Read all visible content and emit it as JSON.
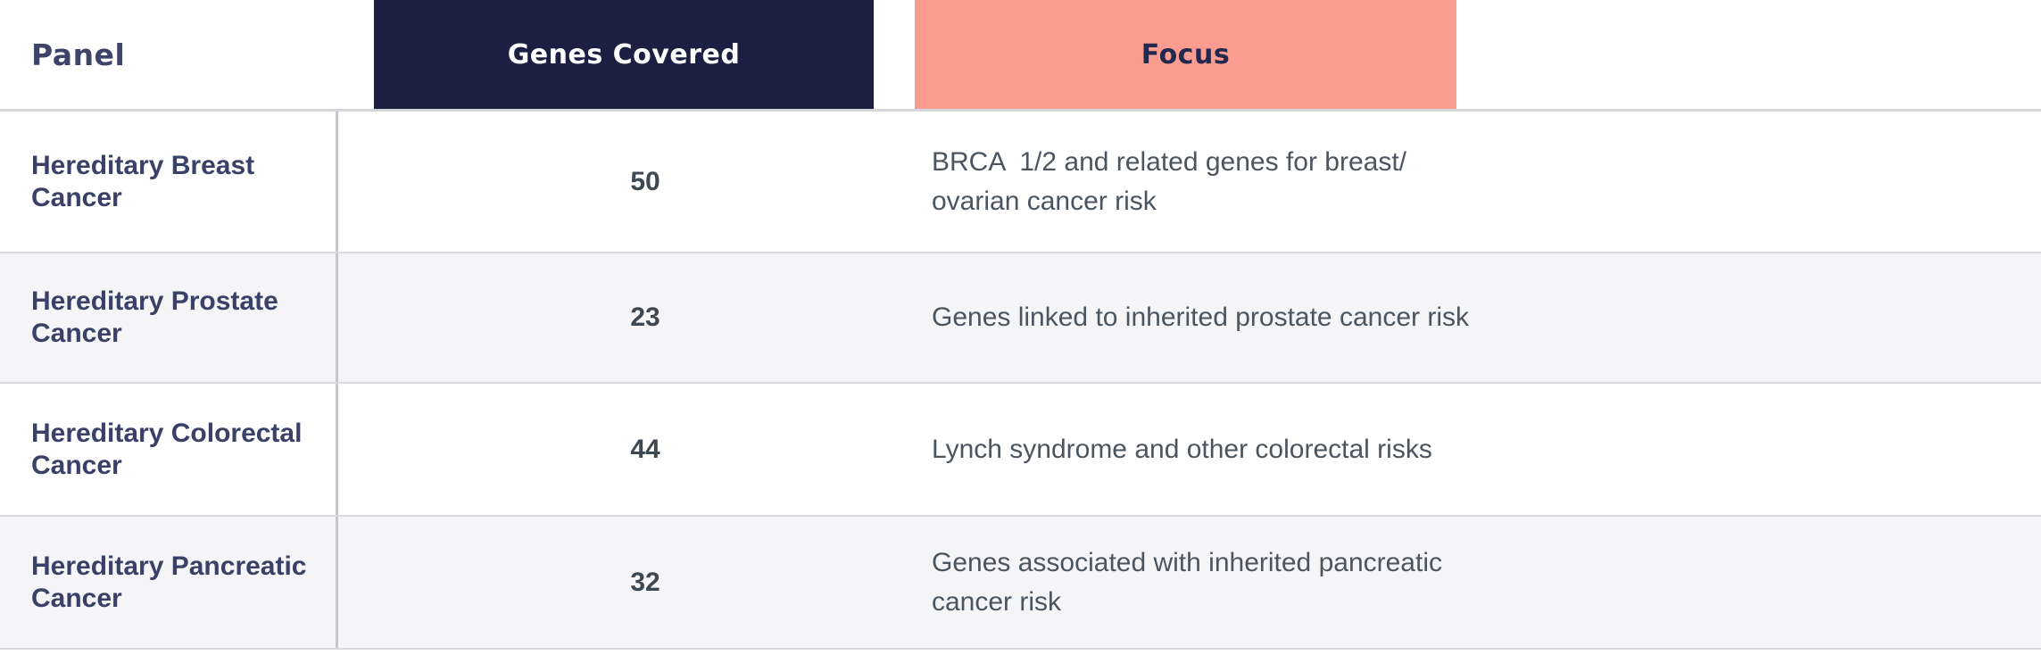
{
  "header": {
    "panel_label": "Panel",
    "genes_label": "Genes Covered",
    "focus_label": "Focus"
  },
  "rows": [
    {
      "panel": "Hereditary Breast Cancer",
      "genes_covered": "50",
      "focus": "BRCA  1/2 and related genes for breast/\novarian cancer risk"
    },
    {
      "panel": "Hereditary Prostate Cancer",
      "genes_covered": "23",
      "focus": "Genes linked to inherited prostate cancer risk"
    },
    {
      "panel": "Hereditary Colorectal Cancer",
      "genes_covered": "44",
      "focus": "Lynch syndrome and other colorectal risks"
    },
    {
      "panel": "Hereditary Pancreatic Cancer",
      "genes_covered": "32",
      "focus": "Genes associated with inherited pancreatic\ncancer risk"
    }
  ],
  "colors": {
    "genes_header_bg": "#1b1f42",
    "genes_header_text": "#ffffff",
    "focus_header_bg": "#fa9c8f",
    "focus_header_text": "#23284e",
    "panel_title_text": "#3d4469",
    "panel_name_text": "#3a4169",
    "genes_count_text": "#3e4852",
    "focus_body_text": "#4b5560",
    "row_alt_bg": "#f5f5f7",
    "row_bg": "#ffffff",
    "divider": "#c6c6cb",
    "row_border": "#dadade"
  }
}
